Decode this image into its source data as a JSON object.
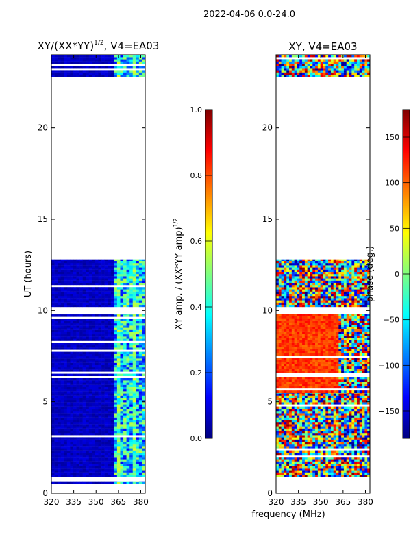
{
  "suptitle": "2022-04-06 0.0-24.0",
  "colors": {
    "jet": [
      "#00007f",
      "#0000ff",
      "#007fff",
      "#00ffff",
      "#7fff7f",
      "#ffff00",
      "#ff7f00",
      "#ff0000",
      "#7f0000"
    ],
    "axis": "#000000",
    "background": "#ffffff"
  },
  "chart_data": [
    {
      "type": "heatmap",
      "title": "XY/(XX*YY)^{1/2}, V4=EA03",
      "title_main": "XY/(XX*YY)",
      "title_sup": "1/2",
      "title_tail": ", V4=EA03",
      "xlabel": "",
      "ylabel": "UT (hours)",
      "xlim": [
        320,
        383
      ],
      "ylim": [
        0,
        24
      ],
      "xticks": [
        "320",
        "335",
        "350",
        "365",
        "380"
      ],
      "yticks": [
        "0",
        "5",
        "10",
        "15",
        "20"
      ],
      "xtick_values": [
        320,
        335,
        350,
        365,
        380
      ],
      "ytick_values": [
        0,
        5,
        10,
        15,
        20
      ],
      "grid": false,
      "data_blocks": [
        [
          0.5,
          0.65
        ],
        [
          0.9,
          9.8
        ],
        [
          10.2,
          12.8
        ],
        [
          22.8,
          24
        ]
      ],
      "colorbar": {
        "label_main": "XY amp. / (XX*YY amp)",
        "label_sup": "1/2",
        "range": [
          0,
          1
        ],
        "ticks": [
          "0.0",
          "0.2",
          "0.4",
          "0.6",
          "0.8",
          "1.0"
        ],
        "tick_values": [
          0,
          0.2,
          0.4,
          0.6,
          0.8,
          1.0
        ]
      }
    },
    {
      "type": "heatmap",
      "title": "XY, V4=EA03",
      "xlabel": "frequency (MHz)",
      "ylabel": "",
      "xlim": [
        320,
        383
      ],
      "ylim": [
        0,
        24
      ],
      "xticks": [
        "320",
        "335",
        "350",
        "365",
        "380"
      ],
      "yticks": [
        "0",
        "5",
        "10",
        "15",
        "20"
      ],
      "xtick_values": [
        320,
        335,
        350,
        365,
        380
      ],
      "ytick_values": [
        0,
        5,
        10,
        15,
        20
      ],
      "grid": false,
      "data_blocks": [
        [
          0.9,
          5.5
        ],
        [
          5.5,
          9.8
        ],
        [
          10.2,
          12.8
        ],
        [
          22.8,
          24
        ]
      ],
      "colorbar": {
        "label": "phase (deg.)",
        "range": [
          -180,
          180
        ],
        "ticks": [
          "−150",
          "−100",
          "−50",
          "0",
          "50",
          "100",
          "150"
        ],
        "tick_values": [
          -150,
          -100,
          -50,
          0,
          50,
          100,
          150
        ]
      }
    }
  ]
}
